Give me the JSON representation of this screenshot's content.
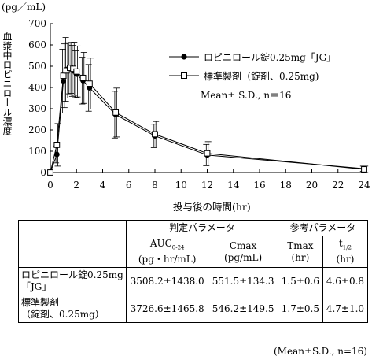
{
  "chart_data": {
    "type": "line",
    "unit_label": "(pg／mL)",
    "ylabel": "血漿中ロピニロール濃度",
    "xlabel": "投与後の時間(hr)",
    "xlim": [
      0,
      24
    ],
    "ylim": [
      0,
      700
    ],
    "x_ticks": [
      "0",
      "2",
      "4",
      "6",
      "8",
      "10",
      "12",
      "14",
      "16",
      "18",
      "20",
      "22",
      "24"
    ],
    "y_ticks": [
      "0",
      "100",
      "200",
      "300",
      "400",
      "500",
      "600",
      "700"
    ],
    "series": [
      {
        "name": "ロピニロール錠0.25mg「JG」",
        "marker": "filled-circle",
        "x": [
          0,
          0.5,
          1,
          1.25,
          1.5,
          1.75,
          2,
          2.5,
          3,
          5,
          8,
          12,
          24
        ],
        "y": [
          0,
          85,
          430,
          485,
          490,
          478,
          462,
          432,
          398,
          272,
          172,
          82,
          18
        ],
        "err": [
          0,
          40,
          150,
          150,
          120,
          120,
          110,
          110,
          110,
          110,
          55,
          50,
          12
        ]
      },
      {
        "name": "標準製剤（錠剤、0.25mg)",
        "marker": "open-square",
        "x": [
          0,
          0.5,
          1,
          1.25,
          1.5,
          1.75,
          2,
          2.5,
          3,
          5,
          8,
          12,
          24
        ],
        "y": [
          0,
          130,
          455,
          480,
          492,
          488,
          475,
          445,
          418,
          282,
          180,
          90,
          15
        ],
        "err": [
          0,
          100,
          150,
          130,
          120,
          125,
          120,
          120,
          120,
          115,
          60,
          55,
          15
        ]
      }
    ],
    "legend_note": "Mean± S.D., n＝16"
  },
  "table": {
    "group_judge": "判定パラメータ",
    "group_ref": "参考パラメータ",
    "col_auc": "AUC",
    "col_auc_sub": "0-24",
    "col_auc_unit": "(pg・hr/mL)",
    "col_cmax": "Cmax",
    "col_cmax_unit": "(pg/mL)",
    "col_tmax": "Tmax",
    "col_tmax_unit": "(hr)",
    "col_thalf": "t",
    "col_thalf_sub": "1/2",
    "col_thalf_unit": "(hr)",
    "rows": [
      {
        "name_line1": "ロピニロール錠0.25mg",
        "name_line2": "「JG」",
        "auc": "3508.2±1438.0",
        "cmax": "551.5±134.3",
        "tmax": "1.5±0.6",
        "thalf": "4.6±0.8"
      },
      {
        "name_line1": "標準製剤",
        "name_line2": "（錠剤、0.25mg）",
        "auc": "3726.6±1465.8",
        "cmax": "546.2±149.5",
        "tmax": "1.7±0.5",
        "thalf": "4.7±1.0"
      }
    ],
    "footnote": "(Mean±S.D., n=16)"
  }
}
